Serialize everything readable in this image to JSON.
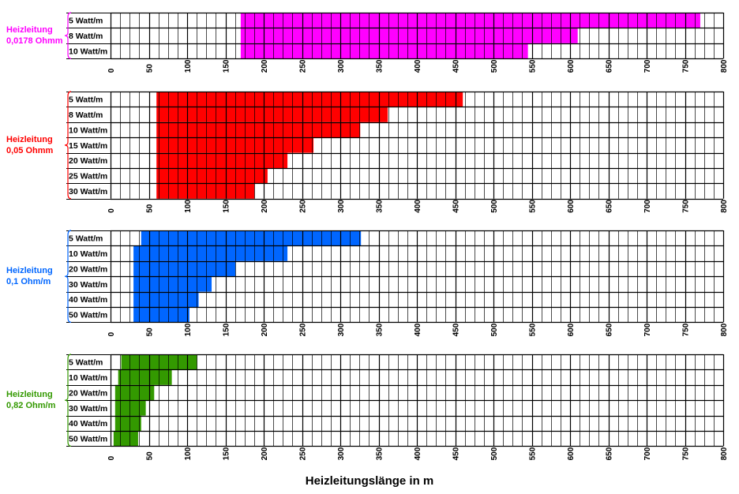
{
  "chart_data": {
    "type": "bar",
    "orientation": "horizontal",
    "xlabel": "Heizleitungslänge in m",
    "xlim": [
      0,
      800
    ],
    "xticks": [
      0,
      50,
      100,
      150,
      200,
      250,
      300,
      350,
      400,
      450,
      500,
      550,
      600,
      650,
      700,
      750,
      800
    ],
    "grid": true,
    "panels": [
      {
        "group_label": [
          "Heizleitung",
          "0,0178 Ohmm"
        ],
        "color": "#ff00ff",
        "rows": [
          {
            "label": "5 Watt/m",
            "range": [
              170,
              770
            ]
          },
          {
            "label": "8 Watt/m",
            "range": [
              170,
              610
            ]
          },
          {
            "label": "10 Watt/m",
            "range": [
              170,
              545
            ]
          }
        ]
      },
      {
        "group_label": [
          "Heizleitung",
          "0,05 Ohmm"
        ],
        "color": "#ff0000",
        "rows": [
          {
            "label": "5 Watt/m",
            "range": [
              60,
              460
            ]
          },
          {
            "label": "8 Watt/m",
            "range": [
              60,
              362
            ]
          },
          {
            "label": "10 Watt/m",
            "range": [
              60,
              326
            ]
          },
          {
            "label": "15 Watt/m",
            "range": [
              60,
              265
            ]
          },
          {
            "label": "20 Watt/m",
            "range": [
              60,
              231
            ]
          },
          {
            "label": "25 Watt/m",
            "range": [
              60,
              205
            ]
          },
          {
            "label": "30 Watt/m",
            "range": [
              60,
              188
            ]
          }
        ]
      },
      {
        "group_label": [
          "Heizleitung",
          "0,1 Ohm/m"
        ],
        "color": "#0066ff",
        "rows": [
          {
            "label": "5 Watt/m",
            "range": [
              40,
              327
            ]
          },
          {
            "label": "10 Watt/m",
            "range": [
              30,
              231
            ]
          },
          {
            "label": "20 Watt/m",
            "range": [
              30,
              163
            ]
          },
          {
            "label": "30 Watt/m",
            "range": [
              30,
              132
            ]
          },
          {
            "label": "40 Watt/m",
            "range": [
              30,
              115
            ]
          },
          {
            "label": "50 Watt/m",
            "range": [
              30,
              103
            ]
          }
        ]
      },
      {
        "group_label": [
          "Heizleitung",
          "0,82 Ohm/m"
        ],
        "color": "#339900",
        "rows": [
          {
            "label": "5 Watt/m",
            "range": [
              14,
              113
            ]
          },
          {
            "label": "10 Watt/m",
            "range": [
              10,
              80
            ]
          },
          {
            "label": "20 Watt/m",
            "range": [
              6,
              57
            ]
          },
          {
            "label": "30 Watt/m",
            "range": [
              6,
              46
            ]
          },
          {
            "label": "40 Watt/m",
            "range": [
              6,
              40
            ]
          },
          {
            "label": "50 Watt/m",
            "range": [
              4,
              36
            ]
          }
        ]
      }
    ]
  }
}
